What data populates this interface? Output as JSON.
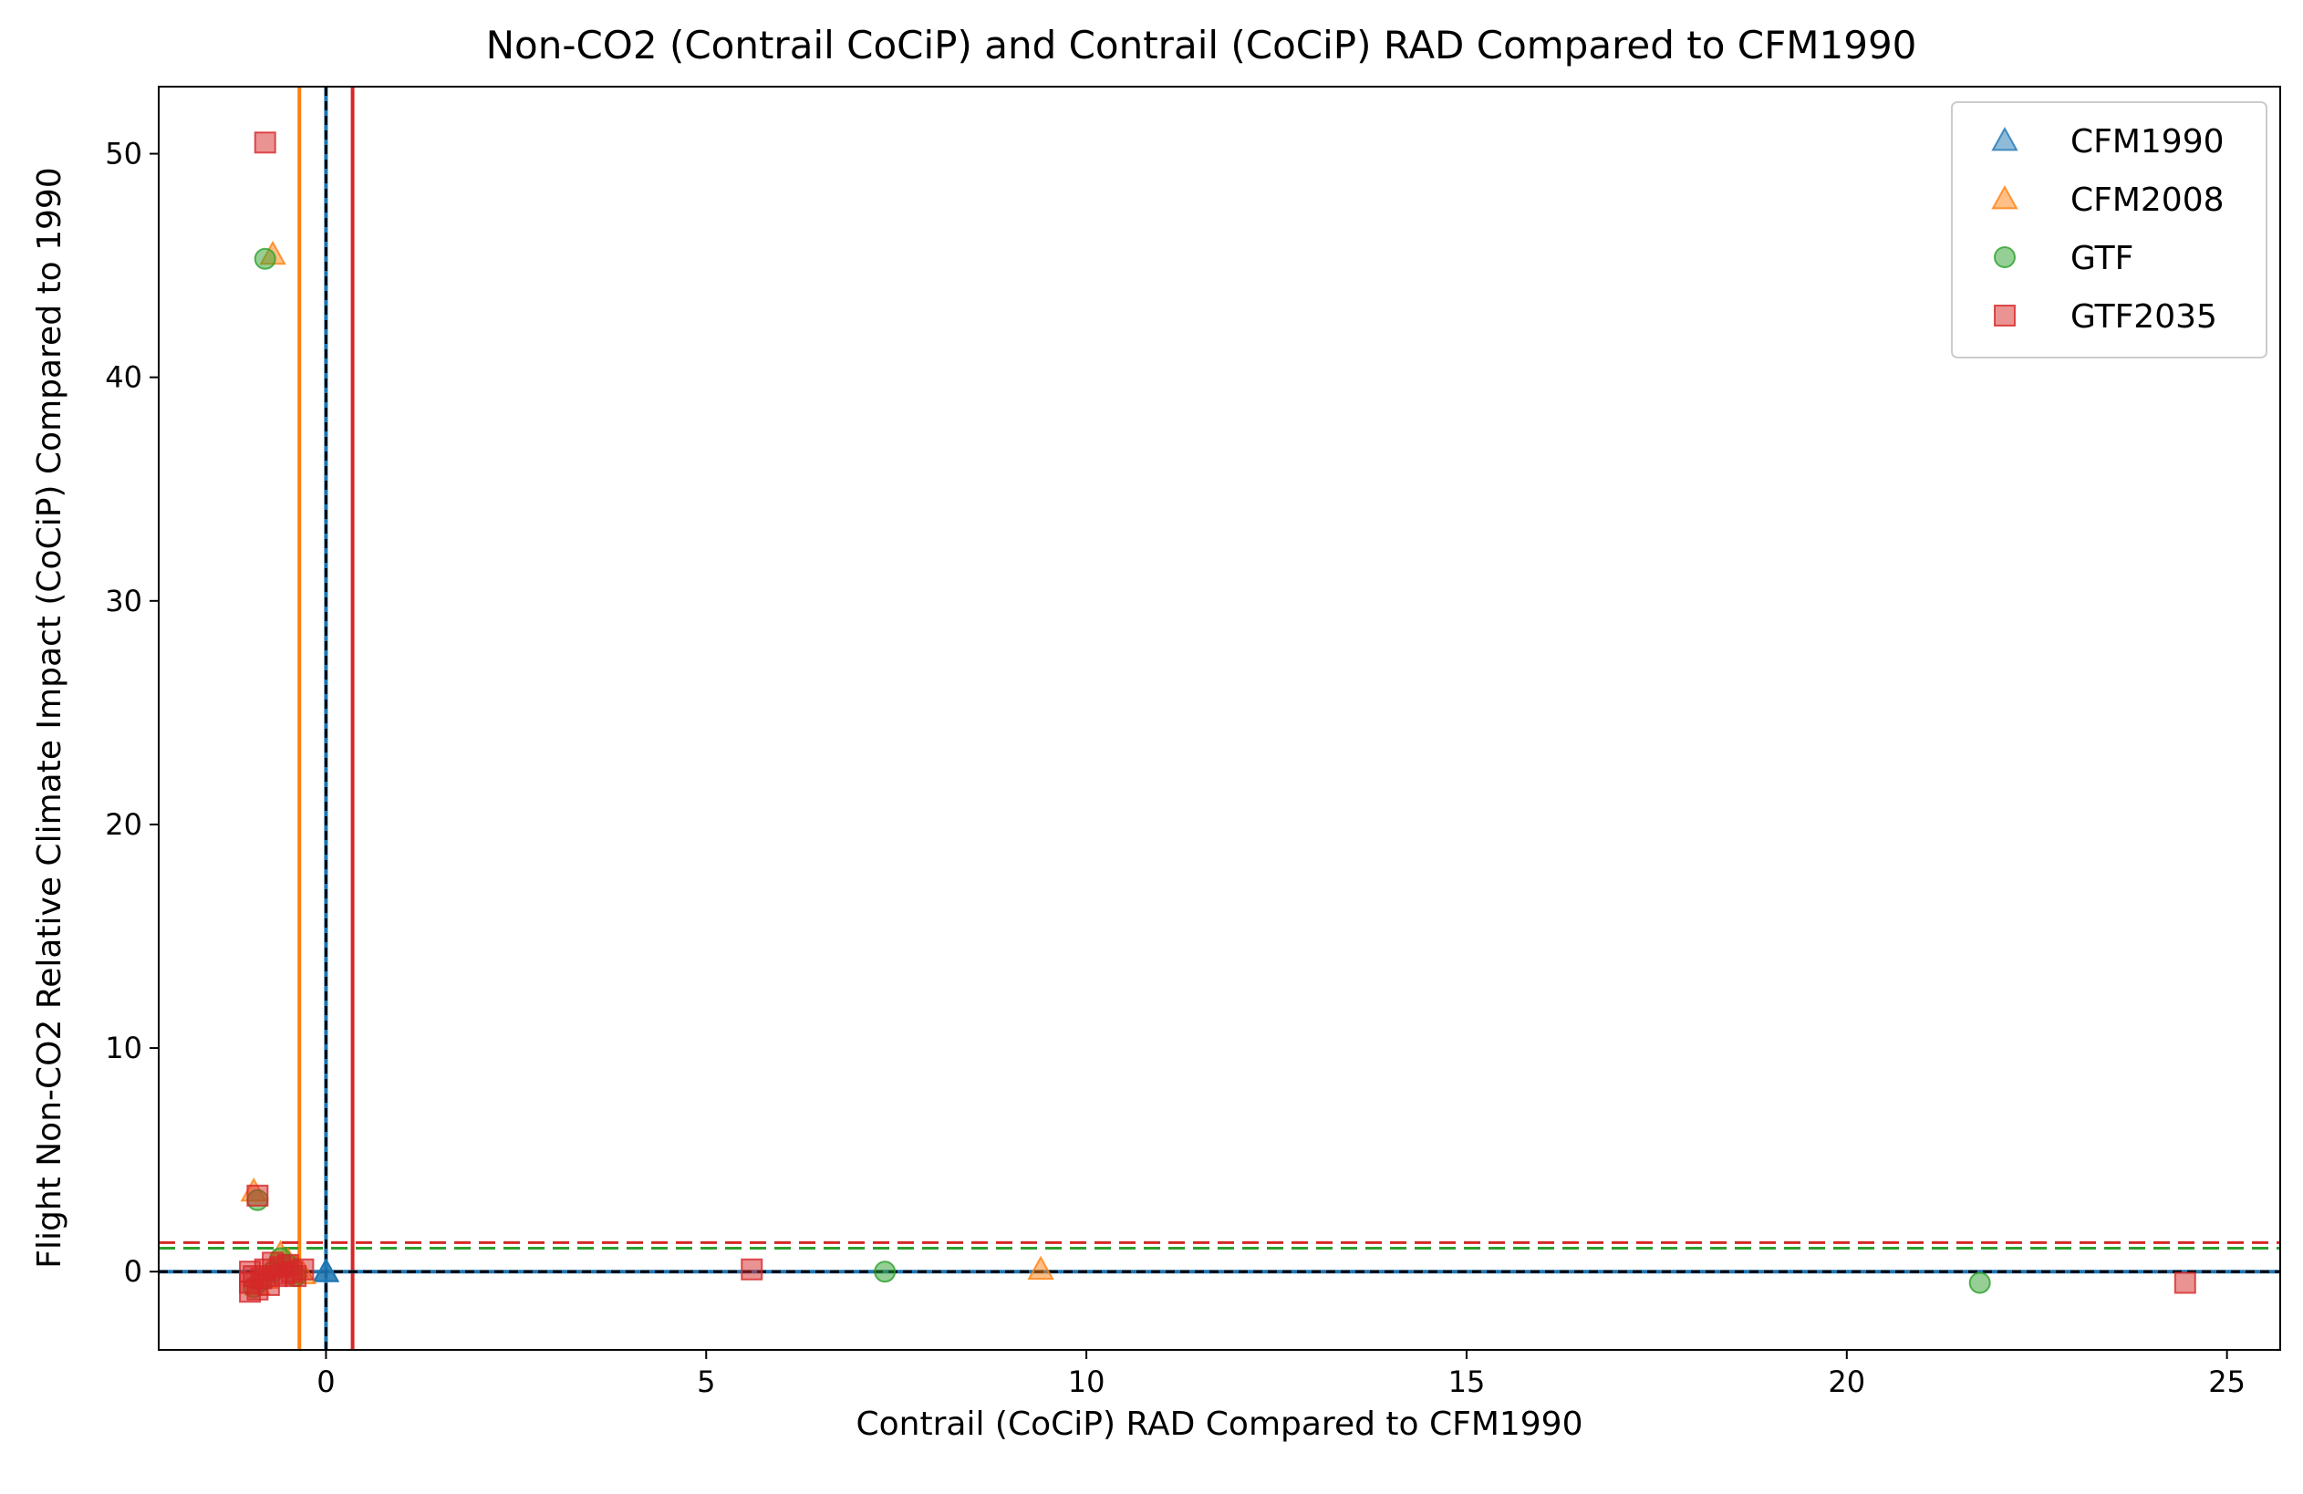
{
  "chart_data": {
    "type": "scatter",
    "title": "Non-CO2 (Contrail CoCiP) and Contrail (CoCiP) RAD Compared to CFM1990",
    "xlabel": "Contrail (CoCiP) RAD Compared to CFM1990",
    "ylabel": "Flight Non-CO2 Relative Climate Impact (CoCiP) Compared to 1990",
    "xlim": [
      -2.2,
      25.7
    ],
    "ylim": [
      -3.5,
      53
    ],
    "xticks": [
      0,
      5,
      10,
      15,
      20,
      25
    ],
    "yticks": [
      0,
      10,
      20,
      30,
      40,
      50
    ],
    "grid": false,
    "legend_position": "top-right",
    "colors": {
      "CFM1990": "#1f77b4",
      "CFM2008": "#ff7f0e",
      "GTF": "#2ca02c",
      "GTF2035": "#d62728",
      "zero_line": "#000000"
    },
    "series": [
      {
        "name": "CFM1990",
        "marker": "triangle",
        "color": "#1f77b4",
        "points": [
          [
            0,
            0
          ],
          [
            0,
            0
          ],
          [
            0,
            0
          ]
        ]
      },
      {
        "name": "CFM2008",
        "marker": "triangle",
        "color": "#ff7f0e",
        "points": [
          [
            -0.7,
            45.5
          ],
          [
            -0.95,
            3.6
          ],
          [
            9.4,
            0.1
          ],
          [
            -0.6,
            0.8
          ],
          [
            -0.5,
            0.5
          ],
          [
            -0.4,
            0.2
          ],
          [
            -0.3,
            -0.1
          ],
          [
            -0.8,
            -0.3
          ],
          [
            -0.9,
            -0.6
          ],
          [
            -0.7,
            0.3
          ]
        ]
      },
      {
        "name": "GTF",
        "marker": "circle",
        "color": "#2ca02c",
        "points": [
          [
            -0.8,
            45.3
          ],
          [
            -0.9,
            3.2
          ],
          [
            7.35,
            0.0
          ],
          [
            21.75,
            -0.5
          ],
          [
            -0.6,
            0.6
          ],
          [
            -0.5,
            0.3
          ],
          [
            -0.7,
            0.0
          ],
          [
            -0.85,
            -0.4
          ],
          [
            -0.95,
            -0.7
          ],
          [
            -0.4,
            -0.2
          ]
        ]
      },
      {
        "name": "GTF2035",
        "marker": "square",
        "color": "#d62728",
        "points": [
          [
            -0.8,
            50.5
          ],
          [
            -0.9,
            3.4
          ],
          [
            5.6,
            0.1
          ],
          [
            24.45,
            -0.5
          ],
          [
            -1.0,
            -0.9
          ],
          [
            -1.0,
            -0.5
          ],
          [
            -1.0,
            0.0
          ],
          [
            -0.9,
            -0.8
          ],
          [
            -0.85,
            -0.3
          ],
          [
            -0.8,
            0.1
          ],
          [
            -0.75,
            -0.6
          ],
          [
            -0.7,
            0.4
          ],
          [
            -0.65,
            -0.2
          ],
          [
            -0.6,
            0.2
          ],
          [
            -0.55,
            -0.1
          ],
          [
            -0.5,
            0.3
          ],
          [
            -0.45,
            0.0
          ],
          [
            -0.4,
            -0.2
          ],
          [
            -0.3,
            0.1
          ],
          [
            -0.95,
            -0.2
          ]
        ]
      }
    ],
    "reference_lines": [
      {
        "orientation": "vertical",
        "value": -0.35,
        "color": "#ff7f0e",
        "style": "solid"
      },
      {
        "orientation": "vertical",
        "value": 0.0,
        "color": "#1f77b4",
        "style": "solid"
      },
      {
        "orientation": "vertical",
        "value": 0.35,
        "color": "#d62728",
        "style": "solid"
      },
      {
        "orientation": "vertical",
        "value": 0.0,
        "color": "#000000",
        "style": "dashed"
      },
      {
        "orientation": "horizontal",
        "value": 1.05,
        "color": "#2ca02c",
        "style": "dashed"
      },
      {
        "orientation": "horizontal",
        "value": 1.3,
        "color": "#d62728",
        "style": "dashed"
      },
      {
        "orientation": "horizontal",
        "value": 0.0,
        "color": "#1f77b4",
        "style": "solid"
      },
      {
        "orientation": "horizontal",
        "value": 0.0,
        "color": "#000000",
        "style": "dashed"
      }
    ]
  }
}
